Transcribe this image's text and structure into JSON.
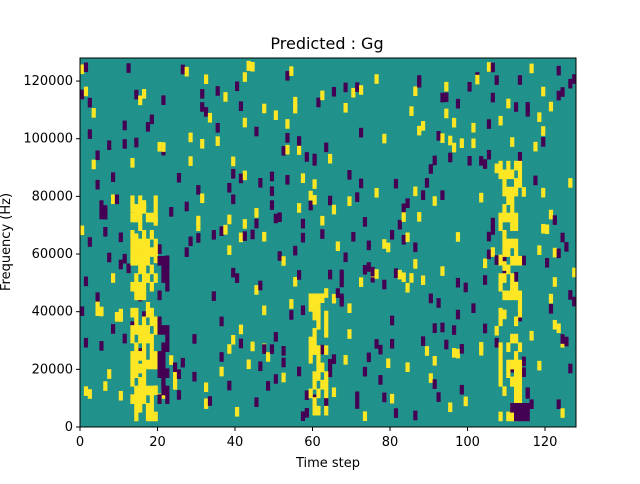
{
  "chart_data": {
    "type": "heatmap",
    "title": "Predicted : Gg",
    "xlabel": "Time step",
    "ylabel": "Frequency (Hz)",
    "xlim": [
      0,
      128
    ],
    "ylim": [
      0,
      128000
    ],
    "x_ticks": [
      0,
      20,
      40,
      60,
      80,
      100,
      120
    ],
    "x_tick_labels": [
      "0",
      "20",
      "40",
      "60",
      "80",
      "100",
      "120"
    ],
    "y_ticks": [
      0,
      20000,
      40000,
      60000,
      80000,
      100000,
      120000
    ],
    "y_tick_labels": [
      "0",
      "20000",
      "40000",
      "60000",
      "80000",
      "100000",
      "120000"
    ],
    "colormap": "viridis",
    "value_levels": {
      "low": 0,
      "mid": 0.5,
      "high": 1
    },
    "colors": {
      "background": "#21918c",
      "low": "#440154",
      "high": "#fde725"
    },
    "high_regions": [
      {
        "t": [
          13,
          19
        ],
        "hz": [
          2000,
          78000
        ]
      },
      {
        "t": [
          59,
          63
        ],
        "hz": [
          4000,
          46000
        ]
      },
      {
        "t": [
          108,
          113
        ],
        "hz": [
          2000,
          90000
        ]
      }
    ],
    "dark_regions": [
      {
        "t": [
          20,
          22
        ],
        "hz": [
          8000,
          58000
        ]
      },
      {
        "t": [
          111,
          115
        ],
        "hz": [
          2000,
          6000
        ]
      }
    ]
  }
}
